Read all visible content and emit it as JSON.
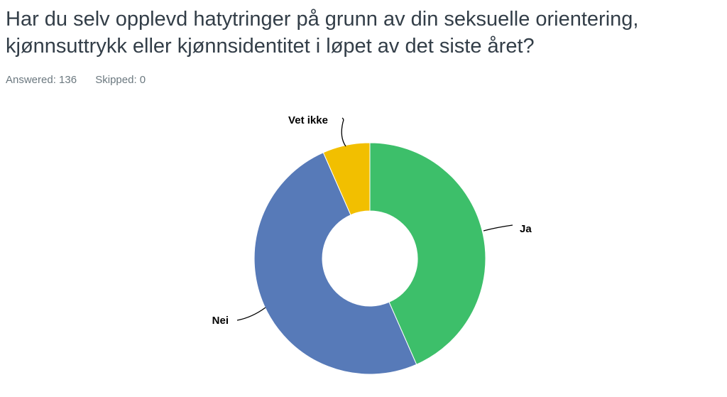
{
  "question": {
    "title_line1": "Har du selv opplevd hatytringer på grunn av din seksuelle orientering,",
    "title_line2": "kjønnsuttrykk eller kjønnsidentitet i løpet av det siste året?"
  },
  "stats": {
    "answered": "Answered: 136",
    "skipped": "Skipped: 0"
  },
  "chart_data": {
    "type": "pie",
    "donut": true,
    "legend": "none",
    "slices": [
      {
        "label": "Ja",
        "value": 43.4,
        "color": "#3dbf6a"
      },
      {
        "label": "Nei",
        "value": 50.0,
        "color": "#577ab8"
      },
      {
        "label": "Vet ikke",
        "value": 6.6,
        "color": "#f2bf00"
      }
    ]
  }
}
